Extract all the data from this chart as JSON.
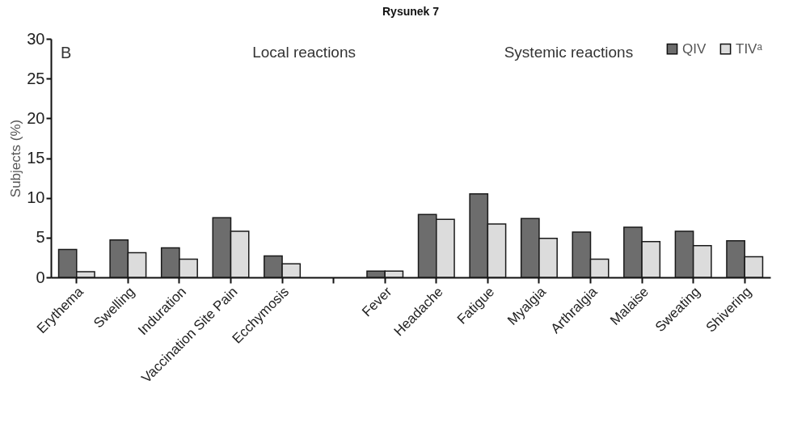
{
  "chart_data": {
    "type": "bar",
    "title": "Rysunek 7",
    "ylabel": "Subjects (%)",
    "annotations": [
      "B",
      "Local reactions",
      "Systemic reactions"
    ],
    "categories": [
      "Erythema",
      "Swelling",
      "Induration",
      "Vaccination Site Pain",
      "Ecchymosis",
      null,
      "Fever",
      "Headache",
      "Fatigue",
      "Myalgia",
      "Arthralgia",
      "Malaise",
      "Sweating",
      "Shivering"
    ],
    "series": [
      {
        "name": "QIV",
        "color": "#6d6d6d",
        "values": [
          3.5,
          4.7,
          3.7,
          7.5,
          2.7,
          null,
          0.8,
          7.9,
          10.5,
          7.4,
          5.7,
          6.3,
          5.8,
          4.6
        ]
      },
      {
        "name": "TIVᵃ",
        "color": "#dcdcdc",
        "values": [
          0.7,
          3.1,
          2.3,
          5.8,
          1.7,
          null,
          0.8,
          7.3,
          6.7,
          4.9,
          2.3,
          4.5,
          4.0,
          2.6
        ]
      }
    ],
    "ylim": [
      0,
      30
    ],
    "yticks": [
      0,
      5,
      10,
      15,
      20,
      25,
      30
    ],
    "grid": false,
    "legend": "top right"
  }
}
